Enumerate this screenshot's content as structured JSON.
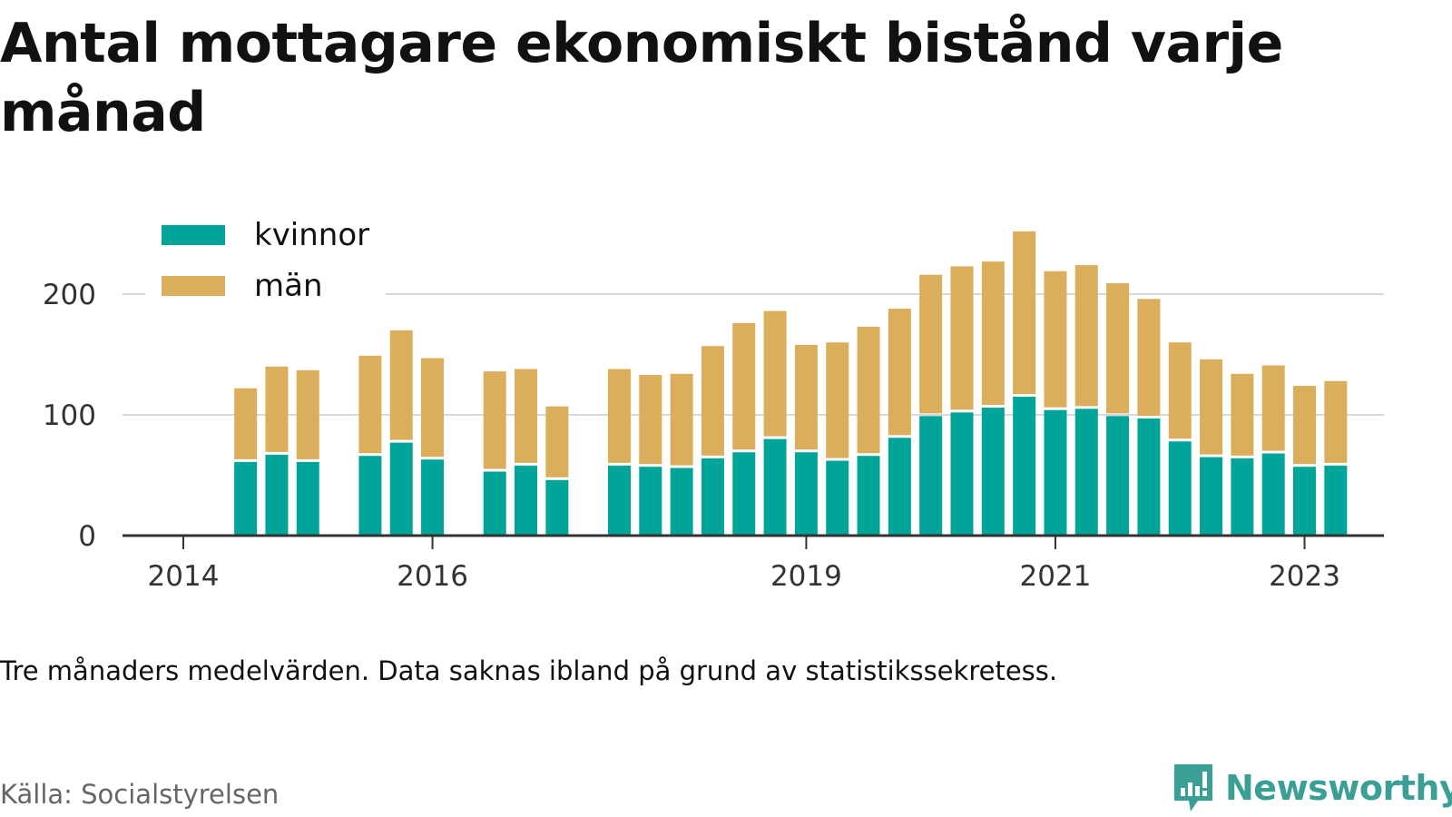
{
  "title": "Antal mottagare ekonomiskt bistånd varje månad",
  "note": "Tre månaders medelvärden. Data saknas ibland på grund av statistikssekretess.",
  "source": "Källa: Socialstyrelsen",
  "brand": {
    "name": "Newsworthy",
    "color": "#3aa095"
  },
  "chart_data": {
    "type": "bar",
    "stacked": true,
    "x_tick_labels": [
      "2014",
      "2016",
      "2019",
      "2021",
      "2023"
    ],
    "y_ticks": [
      0,
      100,
      200
    ],
    "ylim": [
      0,
      250
    ],
    "grid": true,
    "legend_position": "top-left",
    "colors": {
      "kvinnor": "#00a499",
      "män": "#dbae5b"
    },
    "categories": [
      "2014-07",
      "2014-10",
      "2015-01",
      "2015-07",
      "2015-10",
      "2016-01",
      "2016-07",
      "2016-10",
      "2017-01",
      "2017-07",
      "2017-10",
      "2018-01",
      "2018-04",
      "2018-07",
      "2018-10",
      "2019-01",
      "2019-04",
      "2019-07",
      "2019-10",
      "2020-01",
      "2020-04",
      "2020-07",
      "2020-10",
      "2021-01",
      "2021-04",
      "2021-07",
      "2021-10",
      "2022-01",
      "2022-04",
      "2022-07",
      "2022-10",
      "2023-01",
      "2023-04"
    ],
    "series": [
      {
        "name": "kvinnor",
        "values": [
          61,
          67,
          61,
          66,
          77,
          63,
          53,
          58,
          46,
          58,
          57,
          56,
          64,
          69,
          80,
          69,
          62,
          66,
          81,
          99,
          102,
          106,
          115,
          104,
          105,
          99,
          97,
          78,
          65,
          64,
          68,
          57,
          58
        ]
      },
      {
        "name": "män",
        "values": [
          61,
          73,
          76,
          83,
          93,
          84,
          83,
          80,
          61,
          80,
          76,
          78,
          93,
          107,
          106,
          89,
          98,
          107,
          107,
          117,
          121,
          121,
          137,
          115,
          119,
          110,
          99,
          82,
          81,
          70,
          73,
          67,
          70
        ]
      }
    ]
  }
}
